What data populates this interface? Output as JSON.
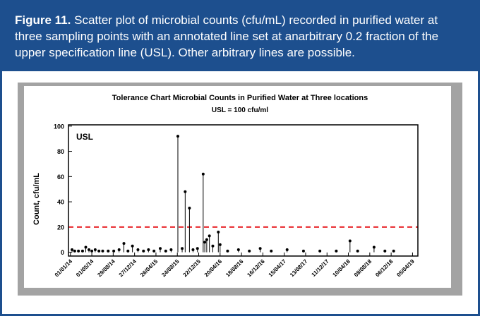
{
  "caption": {
    "label": "Figure 11.",
    "text": "Scatter plot of microbial counts (cfu/mL) recorded in purified water at three sampling points with an annotated line set at anarbitrary 0.2 fraction  of the upper specification line (USL). Other arbitrary lines are possible."
  },
  "chart_data": {
    "type": "scatter",
    "title": "Tolerance Chart Microbial Counts in Purified Water at Three locations",
    "subtitle": "USL = 100 cfu/ml",
    "y_label": "Count, cfu/mL",
    "annotation": "USL",
    "color": "#000000",
    "stems": true,
    "reference_line": {
      "value": 20,
      "color": "#e8262a",
      "style": "dashed"
    },
    "xlim": [
      "2013-12-21",
      "2019-05-05"
    ],
    "ylim": [
      -3,
      101
    ],
    "yticks": [
      0,
      20,
      40,
      60,
      80,
      100
    ],
    "xticks": [
      {
        "value": "2014-01-01",
        "label": "01/01/14"
      },
      {
        "value": "2014-05-01",
        "label": "01/05/14"
      },
      {
        "value": "2014-08-29",
        "label": "29/08/14"
      },
      {
        "value": "2014-12-27",
        "label": "27/12/14"
      },
      {
        "value": "2015-04-26",
        "label": "26/04/15"
      },
      {
        "value": "2015-08-24",
        "label": "24/08/15"
      },
      {
        "value": "2015-12-22",
        "label": "22/12/15"
      },
      {
        "value": "2016-04-20",
        "label": "20/04/16"
      },
      {
        "value": "2016-08-18",
        "label": "18/08/16"
      },
      {
        "value": "2016-12-16",
        "label": "16/12/16"
      },
      {
        "value": "2017-04-15",
        "label": "15/04/17"
      },
      {
        "value": "2017-08-13",
        "label": "13/08/17"
      },
      {
        "value": "2017-12-11",
        "label": "11/12/17"
      },
      {
        "value": "2018-04-10",
        "label": "10/04/18"
      },
      {
        "value": "2018-08-08",
        "label": "08/08/18"
      },
      {
        "value": "2018-12-06",
        "label": "06/12/18"
      },
      {
        "value": "2019-04-05",
        "label": "05/04/19"
      }
    ],
    "x": [
      "2014-01-10",
      "2014-01-25",
      "2014-02-15",
      "2014-03-10",
      "2014-03-28",
      "2014-04-15",
      "2014-05-01",
      "2014-05-20",
      "2014-06-10",
      "2014-07-01",
      "2014-08-01",
      "2014-09-01",
      "2014-10-01",
      "2014-10-28",
      "2014-11-20",
      "2014-12-15",
      "2015-01-15",
      "2015-02-15",
      "2015-03-15",
      "2015-04-15",
      "2015-05-20",
      "2015-06-20",
      "2015-07-20",
      "2015-08-27",
      "2015-09-20",
      "2015-10-07",
      "2015-10-31",
      "2015-11-20",
      "2015-12-15",
      "2016-01-16",
      "2016-01-25",
      "2016-02-05",
      "2016-02-20",
      "2016-03-10",
      "2016-04-10",
      "2016-04-20",
      "2016-06-01",
      "2016-08-01",
      "2016-10-01",
      "2016-12-01",
      "2017-02-01",
      "2017-05-01",
      "2017-08-01",
      "2017-11-01",
      "2018-02-01",
      "2018-04-19",
      "2018-06-01",
      "2018-09-01",
      "2018-11-01",
      "2018-12-20"
    ],
    "values": [
      2,
      1,
      1,
      1,
      4,
      2,
      1,
      2,
      1,
      1,
      1,
      1,
      2,
      7,
      1,
      5,
      2,
      1,
      2,
      1,
      3,
      1,
      2,
      92,
      3,
      48,
      35,
      2,
      3,
      62,
      8,
      10,
      13,
      5,
      16,
      6,
      1,
      2,
      1,
      3,
      1,
      2,
      1,
      1,
      1,
      9,
      1,
      4,
      1,
      1
    ]
  }
}
